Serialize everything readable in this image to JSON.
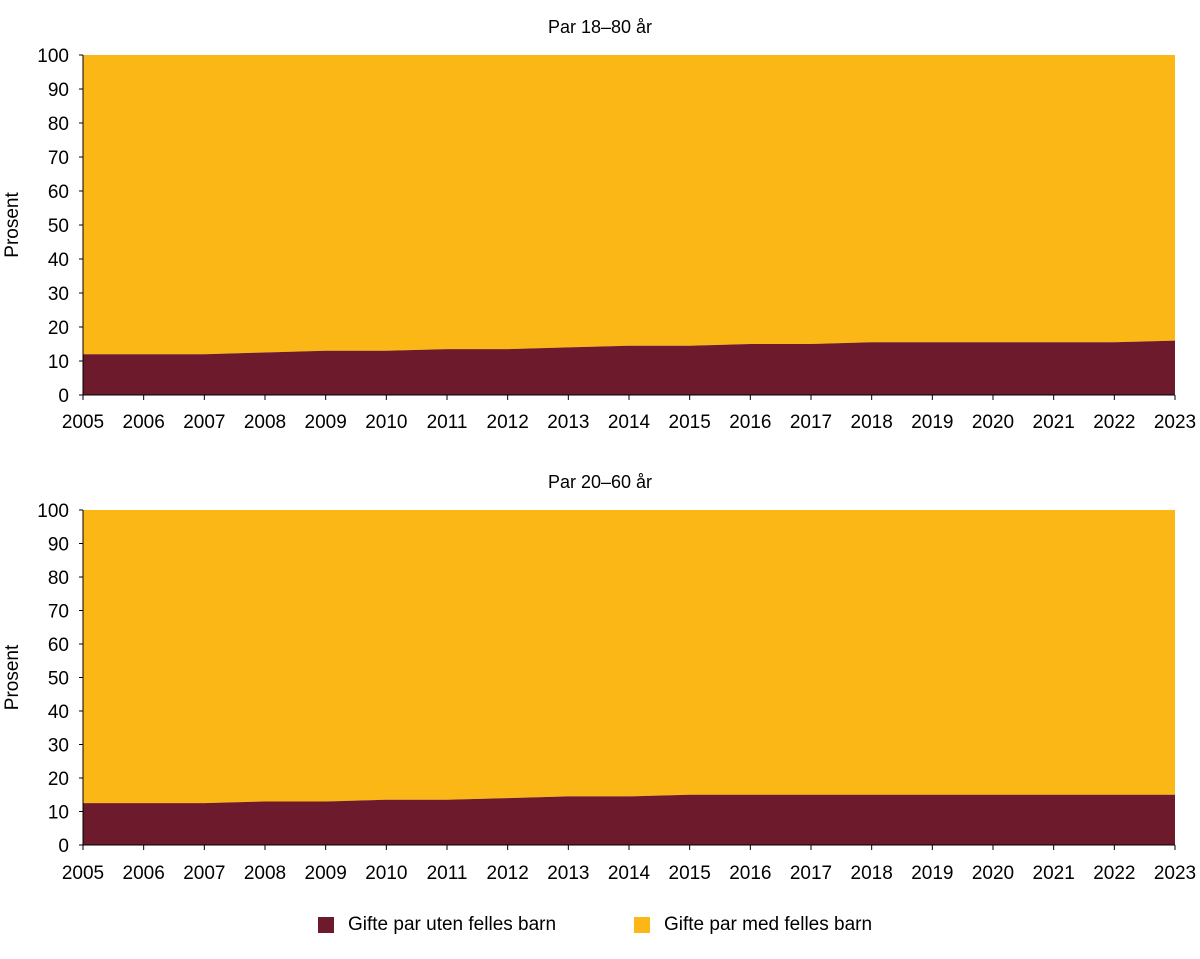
{
  "colors": {
    "uten": "#6d1a2d",
    "med": "#fbb715"
  },
  "legend": {
    "uten_label": "Gifte par uten felles barn",
    "med_label": "Gifte par med felles barn"
  },
  "chart_data": [
    {
      "type": "area",
      "stacked": true,
      "title": "Par 18–80 år",
      "xlabel": "",
      "ylabel": "Prosent",
      "x": [
        "2005",
        "2006",
        "2007",
        "2008",
        "2009",
        "2010",
        "2011",
        "2012",
        "2013",
        "2014",
        "2015",
        "2016",
        "2017",
        "2018",
        "2019",
        "2020",
        "2021",
        "2022",
        "2023"
      ],
      "ylim": [
        0,
        100
      ],
      "yticks": [
        "0",
        "10",
        "20",
        "30",
        "40",
        "50",
        "60",
        "70",
        "80",
        "90",
        "100"
      ],
      "grid": false,
      "legend_position": "bottom",
      "series": [
        {
          "name": "Gifte par uten felles barn",
          "values": [
            12,
            12,
            12,
            12.5,
            13,
            13,
            13.5,
            13.5,
            14,
            14.5,
            14.5,
            15,
            15,
            15.5,
            15.5,
            15.5,
            15.5,
            15.5,
            16
          ]
        },
        {
          "name": "Gifte par med felles barn",
          "values": [
            88,
            88,
            88,
            87.5,
            87,
            87,
            86.5,
            86.5,
            86,
            85.5,
            85.5,
            85,
            85,
            84.5,
            84.5,
            84.5,
            84.5,
            84.5,
            84
          ]
        }
      ]
    },
    {
      "type": "area",
      "stacked": true,
      "title": "Par 20–60 år",
      "xlabel": "",
      "ylabel": "Prosent",
      "x": [
        "2005",
        "2006",
        "2007",
        "2008",
        "2009",
        "2010",
        "2011",
        "2012",
        "2013",
        "2014",
        "2015",
        "2016",
        "2017",
        "2018",
        "2019",
        "2020",
        "2021",
        "2022",
        "2023"
      ],
      "ylim": [
        0,
        100
      ],
      "yticks": [
        "0",
        "10",
        "20",
        "30",
        "40",
        "50",
        "60",
        "70",
        "80",
        "90",
        "100"
      ],
      "grid": false,
      "legend_position": "bottom",
      "series": [
        {
          "name": "Gifte par uten felles barn",
          "values": [
            12.5,
            12.5,
            12.5,
            13,
            13,
            13.5,
            13.5,
            14,
            14.5,
            14.5,
            15,
            15,
            15,
            15,
            15,
            15,
            15,
            15,
            15
          ]
        },
        {
          "name": "Gifte par med felles barn",
          "values": [
            87.5,
            87.5,
            87.5,
            87,
            87,
            86.5,
            86.5,
            86,
            85.5,
            85.5,
            85,
            85,
            85,
            85,
            85,
            85,
            85,
            85,
            85
          ]
        }
      ]
    }
  ]
}
